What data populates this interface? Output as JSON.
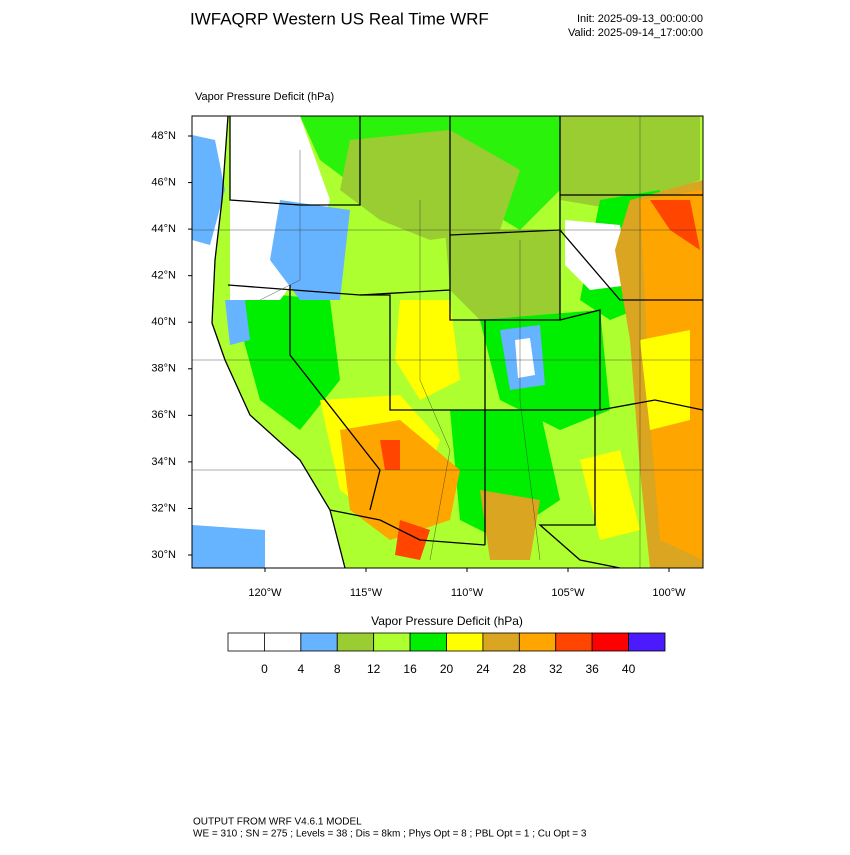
{
  "header": {
    "title": "IWFAQRP Western US Real Time WRF",
    "init": "Init: 2025-09-13_00:00:00",
    "valid": "Valid: 2025-09-14_17:00:00"
  },
  "map": {
    "subtitle": "Vapor Pressure Deficit   (hPa)",
    "lat_ticks": [
      {
        "value": 48,
        "label": "48°N"
      },
      {
        "value": 46,
        "label": "46°N"
      },
      {
        "value": 44,
        "label": "44°N"
      },
      {
        "value": 42,
        "label": "42°N"
      },
      {
        "value": 40,
        "label": "40°N"
      },
      {
        "value": 38,
        "label": "38°N"
      },
      {
        "value": 36,
        "label": "36°N"
      },
      {
        "value": 34,
        "label": "34°N"
      },
      {
        "value": 32,
        "label": "32°N"
      },
      {
        "value": 30,
        "label": "30°N"
      }
    ],
    "lon_ticks": [
      {
        "value": -120,
        "label": "120°W"
      },
      {
        "value": -115,
        "label": "115°W"
      },
      {
        "value": -110,
        "label": "110°W"
      },
      {
        "value": -105,
        "label": "105°W"
      },
      {
        "value": -100,
        "label": "100°W"
      }
    ]
  },
  "colorbar": {
    "title": "Vapor Pressure Deficit  (hPa)",
    "labels": [
      "0",
      "4",
      "8",
      "12",
      "16",
      "20",
      "24",
      "28",
      "32",
      "36",
      "40"
    ],
    "colors": [
      "#ffffff",
      "#ffffff",
      "#66b3ff",
      "#9acd32",
      "#adff2f",
      "#00ee00",
      "#ffff00",
      "#daa520",
      "#ffa500",
      "#ff4500",
      "#ff0000",
      "#4b1aff"
    ]
  },
  "footer": {
    "line1": "OUTPUT FROM WRF V4.6.1 MODEL",
    "line2": "WE = 310 ; SN = 275 ; Levels = 38 ; Dis = 8km ; Phys Opt = 8 ; PBL Opt = 1 ; Cu Opt = 3"
  }
}
